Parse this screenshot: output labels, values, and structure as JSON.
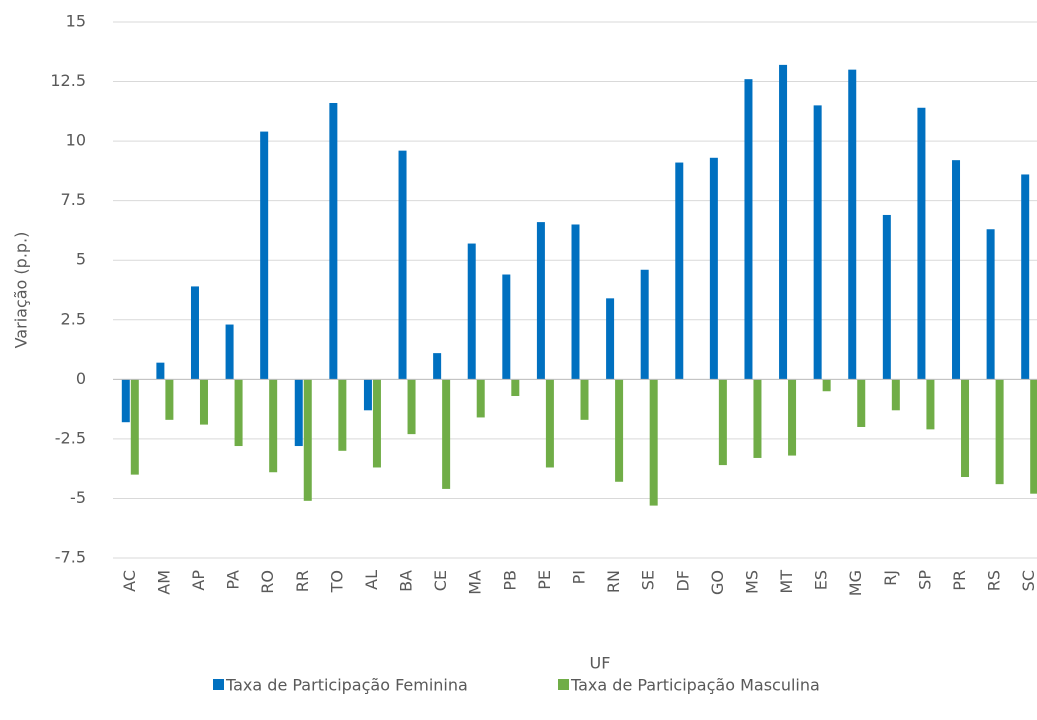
{
  "chart_data": {
    "type": "bar",
    "x_label": "UF",
    "y_label": "Variação (p.p.)",
    "categories": [
      "AC",
      "AM",
      "AP",
      "PA",
      "RO",
      "RR",
      "TO",
      "AL",
      "BA",
      "CE",
      "MA",
      "PB",
      "PE",
      "PI",
      "RN",
      "SE",
      "DF",
      "GO",
      "MS",
      "MT",
      "ES",
      "MG",
      "RJ",
      "SP",
      "PR",
      "RS",
      "SC"
    ],
    "series": [
      {
        "name": "Taxa de Participação Feminina",
        "color": "#0070c0",
        "values": [
          -1.8,
          0.7,
          3.9,
          2.3,
          10.4,
          -2.8,
          11.6,
          -1.3,
          9.6,
          1.1,
          5.7,
          4.4,
          6.6,
          6.5,
          3.4,
          4.6,
          9.1,
          9.3,
          12.6,
          13.2,
          11.5,
          13.0,
          6.9,
          11.4,
          9.2,
          6.3,
          8.6
        ]
      },
      {
        "name": "Taxa de Participação Masculina",
        "color": "#70ad47",
        "values": [
          -4.0,
          -1.7,
          -1.9,
          -2.8,
          -3.9,
          -5.1,
          -3.0,
          -3.7,
          -2.3,
          -4.6,
          -1.6,
          -0.7,
          -3.7,
          -1.7,
          -4.3,
          -5.3,
          0,
          -3.6,
          -3.3,
          -3.2,
          -0.5,
          -2.0,
          -1.3,
          -2.1,
          -4.1,
          -4.4,
          -4.8
        ]
      }
    ],
    "ylim": [
      -7.5,
      15
    ],
    "yticks": [
      -7.5,
      -5,
      -2.5,
      0,
      2.5,
      5,
      7.5,
      10,
      12.5,
      15
    ],
    "grid": true,
    "legend": "bottom"
  }
}
